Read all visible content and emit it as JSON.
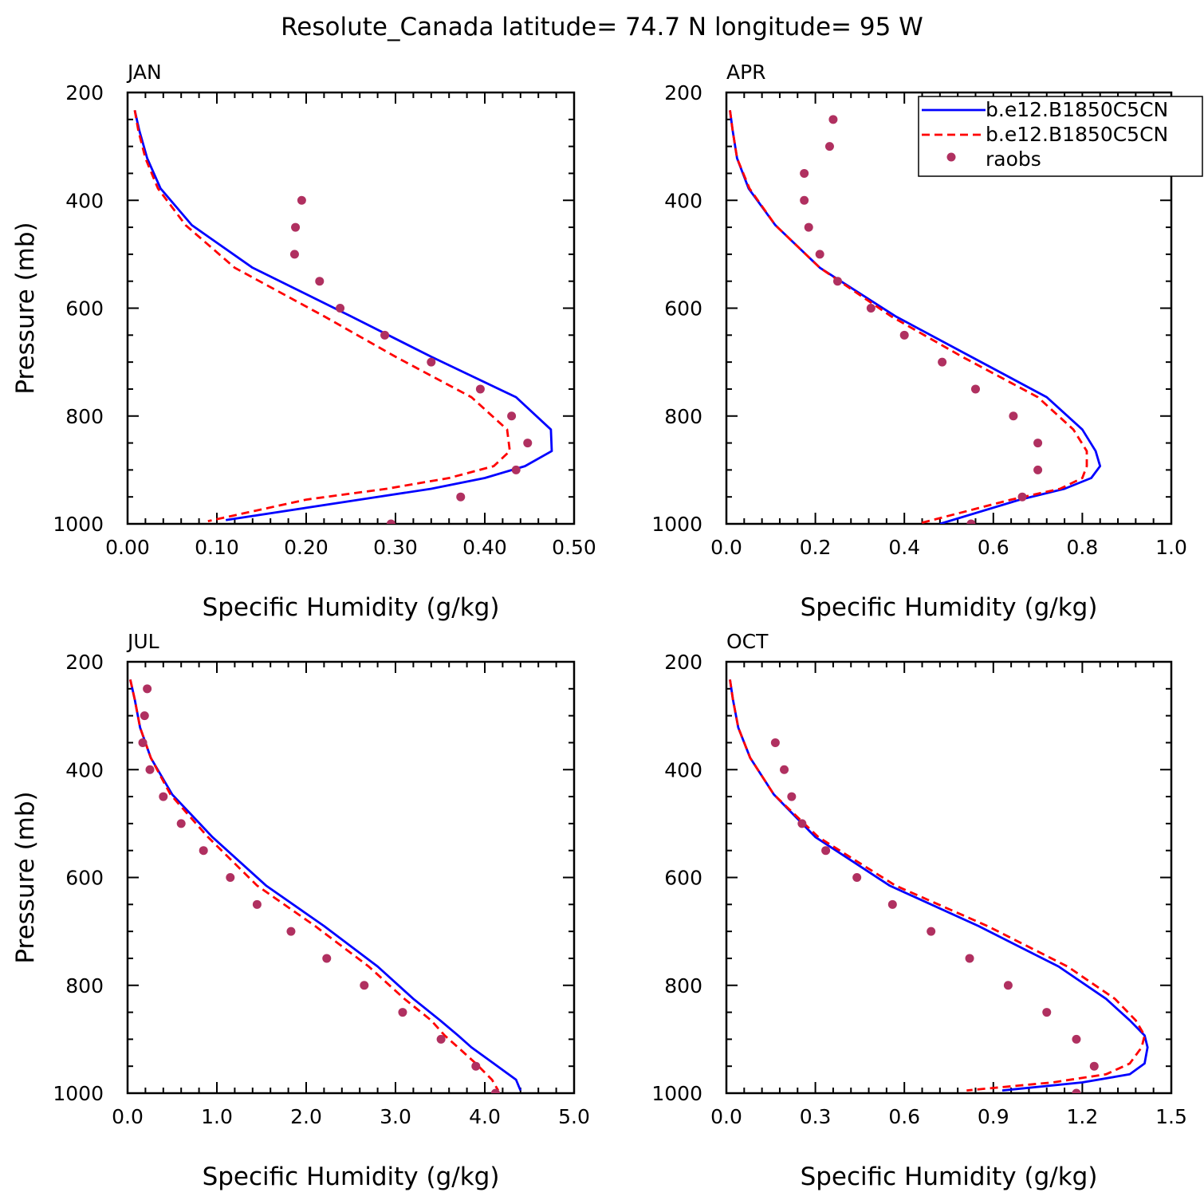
{
  "title": "Resolute_Canada   latitude= 74.7 N longitude= 95 W",
  "colors": {
    "model1": "#0000ff",
    "model2": "#ff0000",
    "raobs": "#b03060"
  },
  "legend": {
    "placement": "top-right of APR panel",
    "entries": [
      {
        "label": "b.e12.B1850C5CN",
        "style": "solid",
        "color": "#0000ff"
      },
      {
        "label": "b.e12.B1850C5CN",
        "style": "dashed",
        "color": "#ff0000"
      },
      {
        "label": "raobs",
        "style": "dot",
        "color": "#b03060"
      }
    ]
  },
  "chart_data": [
    {
      "type": "line",
      "panel": "JAN",
      "xlabel": "Specific Humidity (g/kg)",
      "ylabel": "Pressure (mb)",
      "xlim": [
        0,
        0.5
      ],
      "ylim": [
        1000,
        200
      ],
      "xticks": [
        0.0,
        0.1,
        0.2,
        0.3,
        0.4,
        0.5
      ],
      "xtick_labels": [
        "0.00",
        "0.10",
        "0.20",
        "0.30",
        "0.40",
        "0.50"
      ],
      "yticks": [
        200,
        400,
        600,
        800,
        1000
      ],
      "ytick_labels": [
        "200",
        "400",
        "600",
        "800",
        "1000"
      ],
      "series": [
        {
          "name": "b.e12.B1850C5CN",
          "style": "solid",
          "color": "#0000ff",
          "x": [
            0.008,
            0.013,
            0.022,
            0.037,
            0.072,
            0.14,
            0.25,
            0.34,
            0.435,
            0.474,
            0.475,
            0.445,
            0.4,
            0.34,
            0.26,
            0.11
          ],
          "y": [
            233,
            270,
            322,
            378,
            446,
            525,
            615,
            690,
            765,
            825,
            865,
            893,
            915,
            935,
            955,
            993
          ]
        },
        {
          "name": "b.e12.B1850C5CN",
          "style": "dashed",
          "color": "#ff0000",
          "x": [
            0.008,
            0.012,
            0.02,
            0.034,
            0.065,
            0.12,
            0.22,
            0.3,
            0.385,
            0.425,
            0.428,
            0.41,
            0.36,
            0.29,
            0.2,
            0.09
          ],
          "y": [
            233,
            270,
            322,
            378,
            446,
            525,
            615,
            690,
            765,
            825,
            865,
            893,
            915,
            935,
            955,
            995
          ]
        },
        {
          "name": "raobs",
          "style": "dot",
          "color": "#b03060",
          "x": [
            0.195,
            0.188,
            0.187,
            0.215,
            0.238,
            0.288,
            0.34,
            0.395,
            0.43,
            0.448,
            0.435,
            0.373,
            0.295
          ],
          "y": [
            400,
            450,
            500,
            550,
            600,
            650,
            700,
            750,
            800,
            850,
            900,
            950,
            1000
          ]
        }
      ]
    },
    {
      "type": "line",
      "panel": "APR",
      "xlabel": "Specific Humidity (g/kg)",
      "ylabel": "",
      "xlim": [
        0,
        1.0
      ],
      "ylim": [
        1000,
        200
      ],
      "xticks": [
        0.0,
        0.2,
        0.4,
        0.6,
        0.8,
        1.0
      ],
      "xtick_labels": [
        "0.0",
        "0.2",
        "0.4",
        "0.6",
        "0.8",
        "1.0"
      ],
      "yticks": [
        200,
        400,
        600,
        800,
        1000
      ],
      "ytick_labels": [
        "200",
        "400",
        "600",
        "800",
        "1000"
      ],
      "series": [
        {
          "name": "b.e12.B1850C5CN",
          "style": "solid",
          "color": "#0000ff",
          "x": [
            0.008,
            0.014,
            0.024,
            0.05,
            0.11,
            0.21,
            0.38,
            0.55,
            0.72,
            0.8,
            0.83,
            0.84,
            0.82,
            0.76,
            0.66,
            0.48
          ],
          "y": [
            233,
            270,
            322,
            378,
            446,
            525,
            615,
            690,
            765,
            825,
            865,
            893,
            915,
            935,
            955,
            1000
          ]
        },
        {
          "name": "b.e12.B1850C5CN",
          "style": "dashed",
          "color": "#ff0000",
          "x": [
            0.008,
            0.014,
            0.024,
            0.052,
            0.11,
            0.21,
            0.37,
            0.53,
            0.7,
            0.78,
            0.81,
            0.81,
            0.8,
            0.75,
            0.64,
            0.43
          ],
          "y": [
            233,
            270,
            322,
            378,
            446,
            525,
            615,
            690,
            765,
            825,
            865,
            893,
            915,
            935,
            955,
            1000
          ]
        },
        {
          "name": "raobs",
          "style": "dot",
          "color": "#b03060",
          "x": [
            0.24,
            0.232,
            0.175,
            0.175,
            0.185,
            0.21,
            0.25,
            0.325,
            0.4,
            0.485,
            0.56,
            0.645,
            0.7,
            0.7,
            0.665,
            0.55
          ],
          "y": [
            250,
            300,
            350,
            400,
            450,
            500,
            550,
            600,
            650,
            700,
            750,
            800,
            850,
            900,
            950,
            1000
          ]
        }
      ]
    },
    {
      "type": "line",
      "panel": "JUL",
      "xlabel": "Specific Humidity (g/kg)",
      "ylabel": "Pressure (mb)",
      "xlim": [
        0,
        5.0
      ],
      "ylim": [
        1000,
        200
      ],
      "xticks": [
        0.0,
        1.0,
        2.0,
        3.0,
        4.0,
        5.0
      ],
      "xtick_labels": [
        "0.0",
        "1.0",
        "2.0",
        "3.0",
        "4.0",
        "5.0"
      ],
      "yticks": [
        200,
        400,
        600,
        800,
        1000
      ],
      "ytick_labels": [
        "200",
        "400",
        "600",
        "800",
        "1000"
      ],
      "series": [
        {
          "name": "b.e12.B1850C5CN",
          "style": "solid",
          "color": "#0000ff",
          "x": [
            0.03,
            0.08,
            0.14,
            0.26,
            0.5,
            0.95,
            1.55,
            2.2,
            2.8,
            3.2,
            3.5,
            3.7,
            3.85,
            4.1,
            4.35,
            4.4
          ],
          "y": [
            233,
            270,
            322,
            378,
            446,
            525,
            615,
            690,
            765,
            825,
            865,
            893,
            915,
            945,
            975,
            995
          ]
        },
        {
          "name": "b.e12.B1850C5CN",
          "style": "dashed",
          "color": "#ff0000",
          "x": [
            0.03,
            0.08,
            0.14,
            0.26,
            0.48,
            0.9,
            1.45,
            2.1,
            2.7,
            3.1,
            3.4,
            3.55,
            3.7,
            3.9,
            4.08,
            4.15
          ],
          "y": [
            233,
            270,
            322,
            378,
            446,
            525,
            615,
            690,
            765,
            825,
            865,
            893,
            915,
            945,
            975,
            995
          ]
        },
        {
          "name": "raobs",
          "style": "dot",
          "color": "#b03060",
          "x": [
            0.22,
            0.19,
            0.17,
            0.25,
            0.4,
            0.6,
            0.85,
            1.15,
            1.45,
            1.83,
            2.23,
            2.65,
            3.08,
            3.51,
            3.9,
            4.12
          ],
          "y": [
            250,
            300,
            350,
            400,
            450,
            500,
            550,
            600,
            650,
            700,
            750,
            800,
            850,
            900,
            950,
            1000
          ]
        }
      ]
    },
    {
      "type": "line",
      "panel": "OCT",
      "xlabel": "Specific Humidity (g/kg)",
      "ylabel": "",
      "xlim": [
        0,
        1.5
      ],
      "ylim": [
        1000,
        200
      ],
      "xticks": [
        0.0,
        0.3,
        0.6,
        0.9,
        1.2,
        1.5
      ],
      "xtick_labels": [
        "0.0",
        "0.3",
        "0.6",
        "0.9",
        "1.2",
        "1.5"
      ],
      "yticks": [
        200,
        400,
        600,
        800,
        1000
      ],
      "ytick_labels": [
        "200",
        "400",
        "600",
        "800",
        "1000"
      ],
      "series": [
        {
          "name": "b.e12.B1850C5CN",
          "style": "solid",
          "color": "#0000ff",
          "x": [
            0.012,
            0.022,
            0.04,
            0.08,
            0.16,
            0.3,
            0.55,
            0.85,
            1.12,
            1.28,
            1.36,
            1.41,
            1.42,
            1.41,
            1.36,
            1.2,
            0.93
          ],
          "y": [
            233,
            270,
            322,
            378,
            446,
            525,
            615,
            690,
            765,
            825,
            865,
            893,
            915,
            945,
            965,
            980,
            995
          ]
        },
        {
          "name": "b.e12.B1850C5CN",
          "style": "dashed",
          "color": "#ff0000",
          "x": [
            0.012,
            0.022,
            0.04,
            0.08,
            0.16,
            0.31,
            0.57,
            0.88,
            1.15,
            1.31,
            1.38,
            1.41,
            1.4,
            1.36,
            1.28,
            1.1,
            0.81
          ],
          "y": [
            233,
            270,
            322,
            378,
            446,
            525,
            615,
            690,
            765,
            825,
            865,
            893,
            915,
            945,
            965,
            980,
            995
          ]
        },
        {
          "name": "raobs",
          "style": "dot",
          "color": "#b03060",
          "x": [
            0.165,
            0.195,
            0.22,
            0.255,
            0.335,
            0.44,
            0.56,
            0.69,
            0.82,
            0.95,
            1.08,
            1.18,
            1.24,
            1.18
          ],
          "y": [
            350,
            400,
            450,
            500,
            550,
            600,
            650,
            700,
            750,
            800,
            850,
            900,
            950,
            1000
          ]
        }
      ]
    }
  ]
}
